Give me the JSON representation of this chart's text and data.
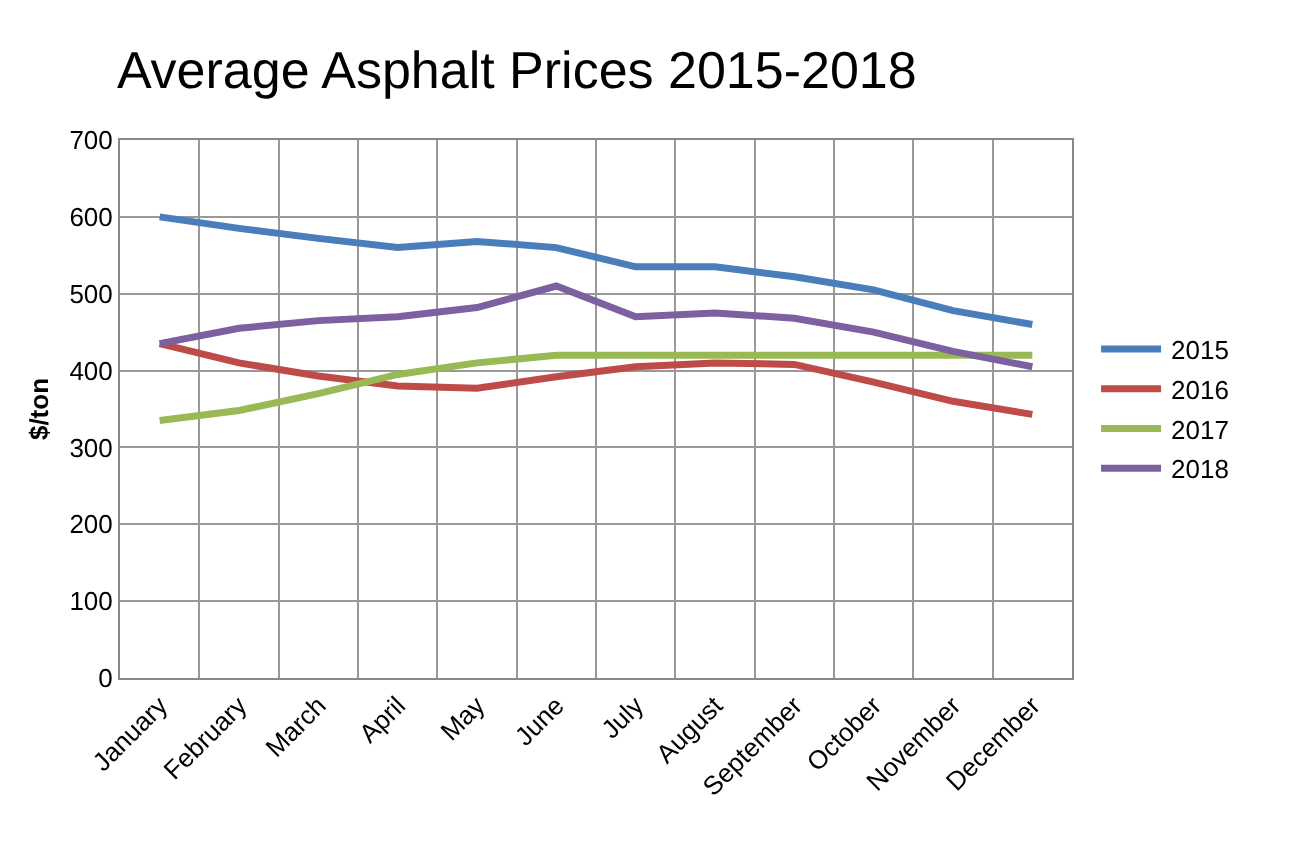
{
  "chart_data": {
    "type": "line",
    "title": "Average Asphalt Prices 2015-2018",
    "ylabel": "$/ton",
    "categories": [
      "January",
      "February",
      "March",
      "April",
      "May",
      "June",
      "July",
      "August",
      "September",
      "October",
      "November",
      "December"
    ],
    "series": [
      {
        "name": "2015",
        "color": "#4a7ebb",
        "values": [
          600,
          585,
          572,
          560,
          568,
          560,
          535,
          535,
          522,
          505,
          478,
          460
        ]
      },
      {
        "name": "2016",
        "color": "#be4b48",
        "values": [
          435,
          410,
          393,
          380,
          377,
          392,
          405,
          410,
          408,
          385,
          360,
          343
        ]
      },
      {
        "name": "2017",
        "color": "#98b954",
        "values": [
          335,
          348,
          370,
          395,
          410,
          420,
          420,
          420,
          420,
          420,
          420,
          420
        ]
      },
      {
        "name": "2018",
        "color": "#7d60a0",
        "values": [
          435,
          455,
          465,
          470,
          482,
          510,
          470,
          475,
          468,
          450,
          425,
          405
        ]
      }
    ],
    "ylim": [
      0,
      700
    ],
    "yticks": [
      0,
      100,
      200,
      300,
      400,
      500,
      600,
      700
    ],
    "grid": true,
    "legend": "right",
    "marker": "none",
    "line_style": "solid"
  }
}
